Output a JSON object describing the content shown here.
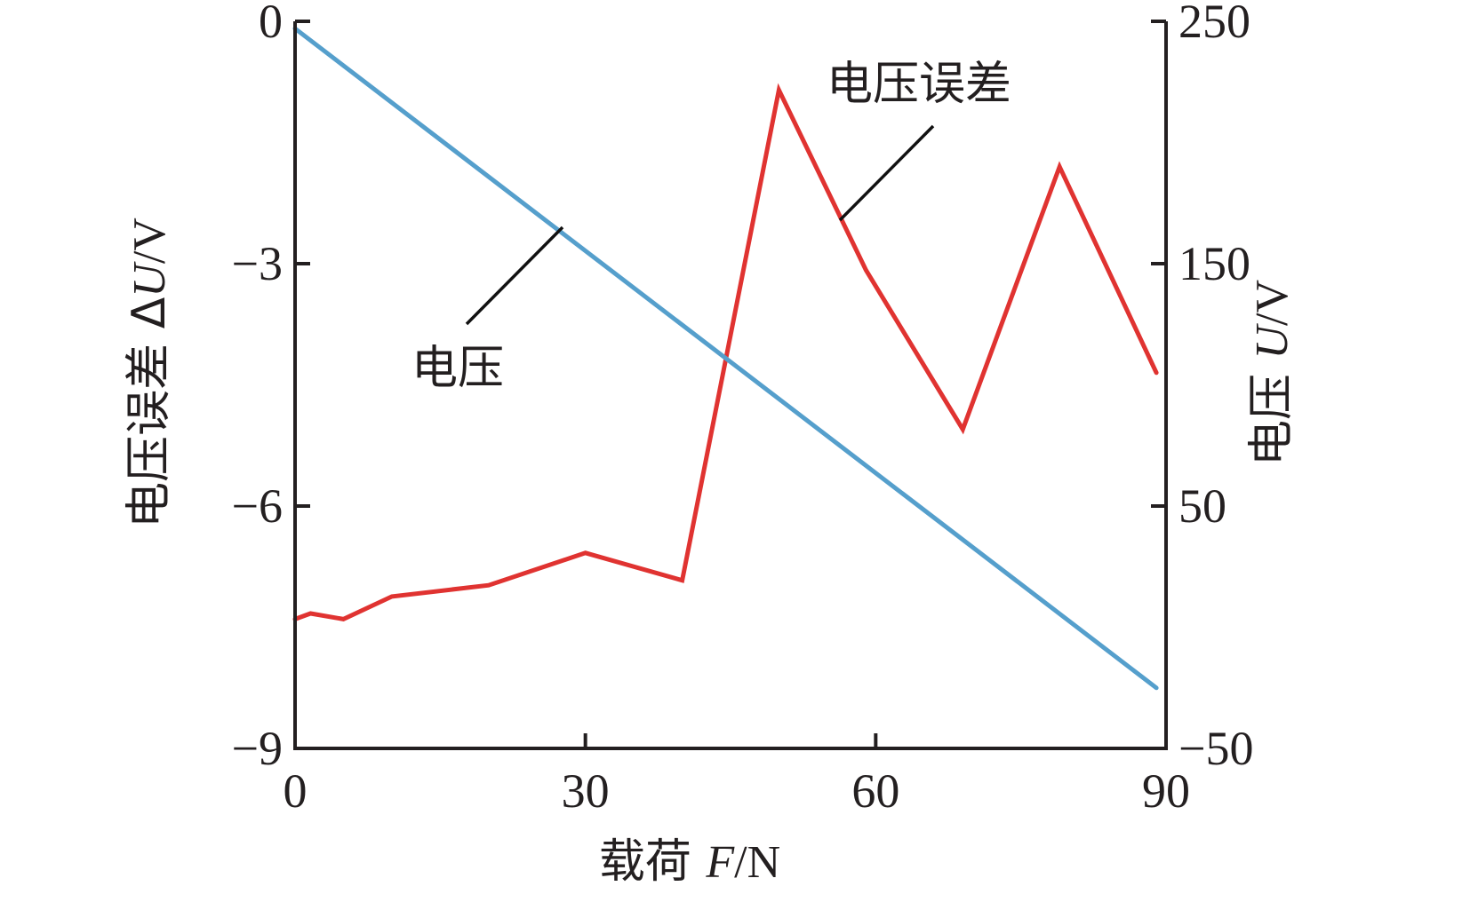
{
  "chart_data": {
    "type": "line",
    "x": [
      0,
      1.6,
      5,
      10,
      20,
      30,
      40,
      50,
      59,
      69,
      79,
      89
    ],
    "xlim": [
      0,
      90
    ],
    "xticks": [
      "0",
      "30",
      "60",
      "90"
    ],
    "xlabel": {
      "main": "载荷 ",
      "var": "F",
      "unit": "/N"
    },
    "y_left": {
      "lim": [
        -9,
        0
      ],
      "ticks": [
        "0",
        "−3",
        "−6",
        "−9"
      ],
      "label": {
        "main": "电压误差 Δ",
        "var": "U",
        "unit": "/V"
      }
    },
    "y_right": {
      "lim": [
        -50,
        250
      ],
      "ticks": [
        "250",
        "150",
        "50",
        "−50"
      ],
      "label": {
        "main": "电压 ",
        "var": "U",
        "unit": "/V"
      }
    },
    "series": [
      {
        "name": "电压误差",
        "axis": "left",
        "color": "#e03331",
        "x": [
          0,
          1.6,
          5,
          10,
          20,
          30,
          40,
          50,
          59,
          69,
          79,
          89
        ],
        "values": [
          -7.4,
          -7.33,
          -7.4,
          -7.12,
          -6.98,
          -6.58,
          -6.92,
          -0.85,
          -3.08,
          -5.05,
          -1.8,
          -4.35
        ]
      },
      {
        "name": "电压",
        "axis": "right",
        "color": "#559fcc",
        "x": [
          0,
          89
        ],
        "values": [
          247,
          -25
        ]
      }
    ],
    "annotations": [
      {
        "text": "电压误差",
        "series": "电压误差"
      },
      {
        "text": "电压",
        "series": "电压"
      }
    ],
    "grid": false,
    "legend": "none"
  }
}
